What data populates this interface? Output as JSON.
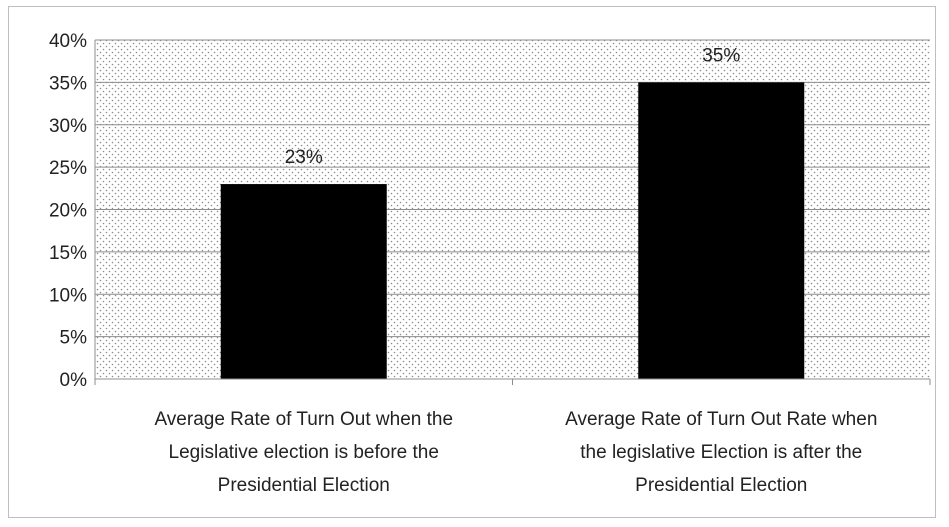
{
  "chart_data": {
    "type": "bar",
    "categories": [
      [
        "Average Rate of Turn Out when the",
        "Legislative  election is before the",
        "Presidential Election"
      ],
      [
        "Average Rate of Turn Out Rate  when",
        "the legislative Election is  after the",
        "Presidential Election"
      ]
    ],
    "values": [
      23,
      35
    ],
    "data_labels": [
      "23%",
      "35%"
    ],
    "ylim": [
      0,
      40
    ],
    "yticks": [
      0,
      5,
      10,
      15,
      20,
      25,
      30,
      35,
      40
    ],
    "ytick_labels": [
      "0%",
      "5%",
      "10%",
      "15%",
      "20%",
      "25%",
      "30%",
      "35%",
      "40%"
    ],
    "title": "",
    "xlabel": "",
    "ylabel": "",
    "grid": true,
    "plot_background": "dotted",
    "bar_color": "#000000"
  }
}
